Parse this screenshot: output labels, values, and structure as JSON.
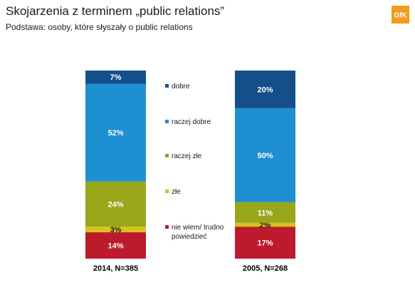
{
  "header": {
    "title": "Skojarzenia z terminem „public relations”",
    "subtitle": "Podstawa: osoby, które słyszały o public relations",
    "logo_text": "GfK",
    "logo_color": "#f39a1f"
  },
  "chart_data": {
    "type": "bar",
    "stacked": true,
    "orientation": "vertical",
    "categories": [
      "2014, N=385",
      "2005, N=268"
    ],
    "series": [
      {
        "name": "nie wiem/ trudno powiedzieć",
        "color": "#be1a2e",
        "values": [
          14,
          17
        ],
        "labels": [
          "14%",
          "17%"
        ]
      },
      {
        "name": "złe",
        "color": "#d9c21c",
        "values": [
          3,
          2
        ],
        "labels": [
          "3%",
          "2%"
        ]
      },
      {
        "name": "raczej złe",
        "color": "#9aa61a",
        "values": [
          24,
          11
        ],
        "labels": [
          "24%",
          "11%"
        ]
      },
      {
        "name": "raczej dobre",
        "color": "#1e8fd0",
        "values": [
          52,
          50
        ],
        "labels": [
          "52%",
          "50%"
        ]
      },
      {
        "name": "dobre",
        "color": "#144f8c",
        "values": [
          7,
          20
        ],
        "labels": [
          "7%",
          "20%"
        ]
      }
    ],
    "ylim": [
      0,
      100
    ],
    "legend_position": "center",
    "grid": false
  }
}
